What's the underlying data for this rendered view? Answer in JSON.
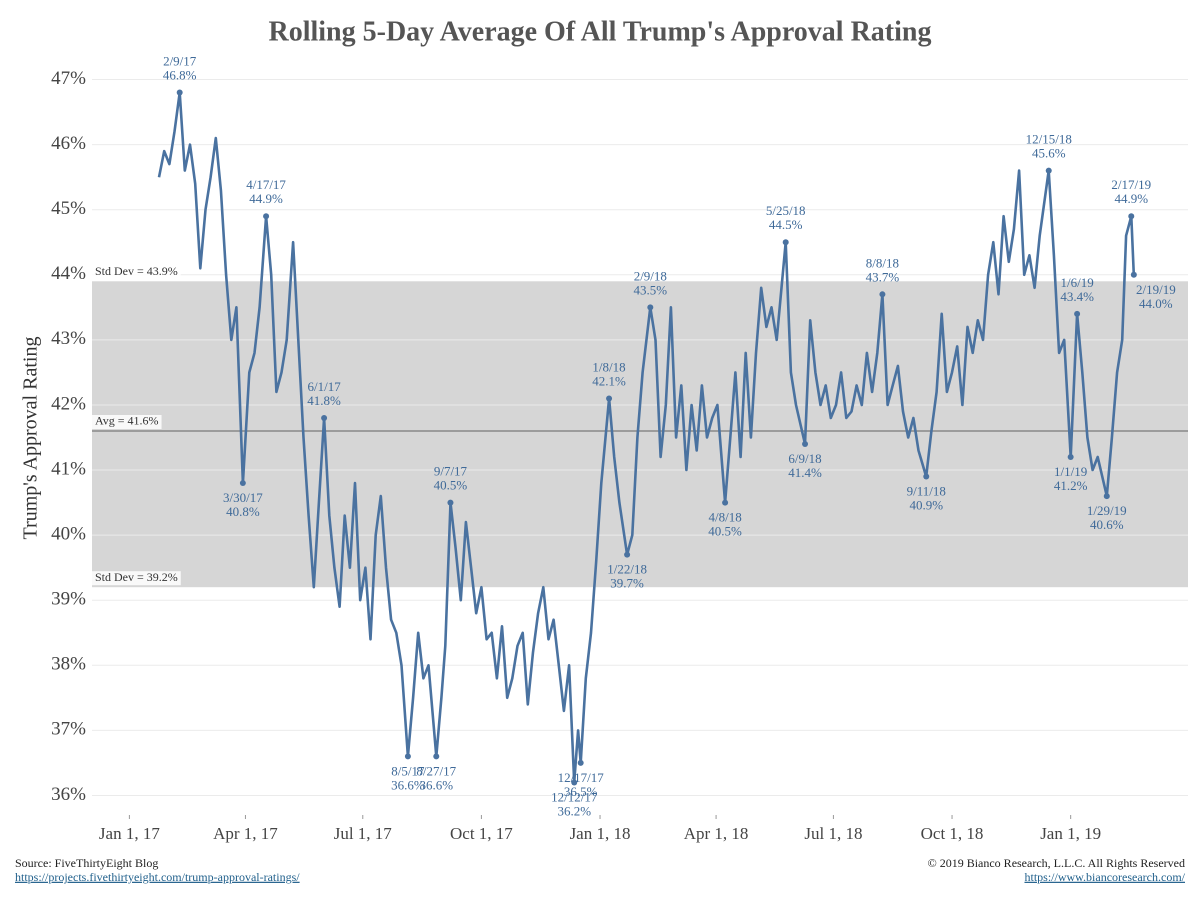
{
  "chart_data": {
    "type": "line",
    "title": "Rolling 5-Day Average Of All Trump's Approval Rating",
    "y_label": "Trump's Approval Rating",
    "source": "Source: FiveThirtyEight Blog",
    "source_url": "https://projects.fivethirtyeight.com/trump-approval-ratings/",
    "copyright": "© 2019 Bianco Research, L.L.C. All Rights Reserved",
    "copyright_url": "https://www.biancoresearch.com/",
    "xlim": [
      "2016-12-03",
      "2019-04-02"
    ],
    "xticks": [
      {
        "value": "2017-01-01",
        "label": "Jan 1, 17"
      },
      {
        "value": "2017-04-01",
        "label": "Apr 1, 17"
      },
      {
        "value": "2017-07-01",
        "label": "Jul 1, 17"
      },
      {
        "value": "2017-10-01",
        "label": "Oct 1, 17"
      },
      {
        "value": "2018-01-01",
        "label": "Jan 1, 18"
      },
      {
        "value": "2018-04-01",
        "label": "Apr 1, 18"
      },
      {
        "value": "2018-07-01",
        "label": "Jul 1, 18"
      },
      {
        "value": "2018-10-01",
        "label": "Oct 1, 18"
      },
      {
        "value": "2019-01-01",
        "label": "Jan 1, 19"
      }
    ],
    "ylim": [
      35.7,
      47.3
    ],
    "yticks": [
      {
        "value": 36,
        "label": "36%"
      },
      {
        "value": 37,
        "label": "37%"
      },
      {
        "value": 38,
        "label": "38%"
      },
      {
        "value": 39,
        "label": "39%"
      },
      {
        "value": 40,
        "label": "40%"
      },
      {
        "value": 41,
        "label": "41%"
      },
      {
        "value": 42,
        "label": "42%"
      },
      {
        "value": 43,
        "label": "43%"
      },
      {
        "value": 44,
        "label": "44%"
      },
      {
        "value": 45,
        "label": "45%"
      },
      {
        "value": 46,
        "label": "46%"
      },
      {
        "value": 47,
        "label": "47%"
      }
    ],
    "grid": true,
    "std_band": [
      {
        "value": 43.9,
        "label": "Std Dev = 43.9%"
      },
      {
        "value": 39.2,
        "label": "Std Dev = 39.2%"
      }
    ],
    "avg_line": {
      "value": 41.6,
      "label": "Avg = 41.6%"
    },
    "band_color": "#d6d6d6",
    "avg_color": "#888888",
    "series": [
      {
        "name": "Rolling 5-Day Average",
        "color": "#4a72a0",
        "x": [
          "2017-01-24",
          "2017-01-28",
          "2017-02-01",
          "2017-02-05",
          "2017-02-09",
          "2017-02-13",
          "2017-02-17",
          "2017-02-21",
          "2017-02-25",
          "2017-03-01",
          "2017-03-05",
          "2017-03-09",
          "2017-03-13",
          "2017-03-17",
          "2017-03-21",
          "2017-03-25",
          "2017-03-30",
          "2017-04-04",
          "2017-04-08",
          "2017-04-12",
          "2017-04-17",
          "2017-04-21",
          "2017-04-25",
          "2017-04-29",
          "2017-05-03",
          "2017-05-08",
          "2017-05-12",
          "2017-05-16",
          "2017-05-20",
          "2017-05-24",
          "2017-05-28",
          "2017-06-01",
          "2017-06-05",
          "2017-06-09",
          "2017-06-13",
          "2017-06-17",
          "2017-06-21",
          "2017-06-25",
          "2017-06-29",
          "2017-07-03",
          "2017-07-07",
          "2017-07-11",
          "2017-07-15",
          "2017-07-19",
          "2017-07-23",
          "2017-07-27",
          "2017-07-31",
          "2017-08-05",
          "2017-08-09",
          "2017-08-13",
          "2017-08-17",
          "2017-08-21",
          "2017-08-27",
          "2017-08-31",
          "2017-09-03",
          "2017-09-07",
          "2017-09-11",
          "2017-09-15",
          "2017-09-19",
          "2017-09-23",
          "2017-09-27",
          "2017-10-01",
          "2017-10-05",
          "2017-10-09",
          "2017-10-13",
          "2017-10-17",
          "2017-10-21",
          "2017-10-25",
          "2017-10-29",
          "2017-11-02",
          "2017-11-06",
          "2017-11-10",
          "2017-11-14",
          "2017-11-18",
          "2017-11-22",
          "2017-11-26",
          "2017-11-30",
          "2017-12-04",
          "2017-12-08",
          "2017-12-12",
          "2017-12-15",
          "2017-12-17",
          "2017-12-21",
          "2017-12-25",
          "2017-12-29",
          "2018-01-02",
          "2018-01-08",
          "2018-01-12",
          "2018-01-16",
          "2018-01-22",
          "2018-01-26",
          "2018-01-30",
          "2018-02-03",
          "2018-02-09",
          "2018-02-13",
          "2018-02-17",
          "2018-02-21",
          "2018-02-25",
          "2018-03-01",
          "2018-03-05",
          "2018-03-09",
          "2018-03-13",
          "2018-03-17",
          "2018-03-21",
          "2018-03-25",
          "2018-03-29",
          "2018-04-02",
          "2018-04-08",
          "2018-04-12",
          "2018-04-16",
          "2018-04-20",
          "2018-04-24",
          "2018-04-28",
          "2018-05-02",
          "2018-05-06",
          "2018-05-10",
          "2018-05-14",
          "2018-05-18",
          "2018-05-25",
          "2018-05-29",
          "2018-06-02",
          "2018-06-09",
          "2018-06-13",
          "2018-06-17",
          "2018-06-21",
          "2018-06-25",
          "2018-06-29",
          "2018-07-03",
          "2018-07-07",
          "2018-07-11",
          "2018-07-15",
          "2018-07-19",
          "2018-07-23",
          "2018-07-27",
          "2018-07-31",
          "2018-08-04",
          "2018-08-08",
          "2018-08-12",
          "2018-08-16",
          "2018-08-20",
          "2018-08-24",
          "2018-08-28",
          "2018-09-01",
          "2018-09-05",
          "2018-09-11",
          "2018-09-15",
          "2018-09-19",
          "2018-09-23",
          "2018-09-27",
          "2018-10-01",
          "2018-10-05",
          "2018-10-09",
          "2018-10-13",
          "2018-10-17",
          "2018-10-21",
          "2018-10-25",
          "2018-10-29",
          "2018-11-02",
          "2018-11-06",
          "2018-11-10",
          "2018-11-14",
          "2018-11-18",
          "2018-11-22",
          "2018-11-26",
          "2018-11-30",
          "2018-12-04",
          "2018-12-08",
          "2018-12-15",
          "2018-12-19",
          "2018-12-23",
          "2018-12-27",
          "2019-01-01",
          "2019-01-06",
          "2019-01-10",
          "2019-01-14",
          "2019-01-18",
          "2019-01-22",
          "2019-01-29",
          "2019-02-02",
          "2019-02-06",
          "2019-02-10",
          "2019-02-13",
          "2019-02-17",
          "2019-02-19"
        ],
        "values": [
          45.5,
          45.9,
          45.7,
          46.2,
          46.8,
          45.6,
          46.0,
          45.4,
          44.1,
          45.0,
          45.5,
          46.1,
          45.3,
          44.0,
          43.0,
          43.5,
          40.8,
          42.5,
          42.8,
          43.5,
          44.9,
          44.0,
          42.2,
          42.5,
          43.0,
          44.5,
          43.0,
          41.5,
          40.3,
          39.2,
          40.5,
          41.8,
          40.3,
          39.5,
          38.9,
          40.3,
          39.5,
          40.8,
          39.0,
          39.5,
          38.4,
          40.0,
          40.6,
          39.5,
          38.7,
          38.5,
          38.0,
          36.6,
          37.5,
          38.5,
          37.8,
          38.0,
          36.6,
          37.5,
          38.3,
          40.5,
          39.8,
          39.0,
          40.2,
          39.5,
          38.8,
          39.2,
          38.4,
          38.5,
          37.8,
          38.6,
          37.5,
          37.8,
          38.3,
          38.5,
          37.4,
          38.2,
          38.8,
          39.2,
          38.4,
          38.7,
          38.0,
          37.3,
          38.0,
          36.2,
          37.0,
          36.5,
          37.8,
          38.5,
          39.6,
          40.8,
          42.1,
          41.2,
          40.5,
          39.7,
          40.0,
          41.5,
          42.5,
          43.5,
          43.0,
          41.2,
          42.0,
          43.5,
          41.5,
          42.3,
          41.0,
          42.0,
          41.3,
          42.3,
          41.5,
          41.8,
          42.0,
          40.5,
          41.5,
          42.5,
          41.2,
          42.8,
          41.5,
          42.8,
          43.8,
          43.2,
          43.5,
          43.0,
          44.5,
          42.5,
          42.0,
          41.4,
          43.3,
          42.5,
          42.0,
          42.3,
          41.8,
          42.0,
          42.5,
          41.8,
          41.9,
          42.3,
          42.0,
          42.8,
          42.2,
          42.8,
          43.7,
          42.0,
          42.3,
          42.6,
          41.9,
          41.5,
          41.8,
          41.3,
          40.9,
          41.6,
          42.2,
          43.4,
          42.2,
          42.5,
          42.9,
          42.0,
          43.2,
          42.8,
          43.3,
          43.0,
          44.0,
          44.5,
          43.7,
          44.9,
          44.2,
          44.7,
          45.6,
          44.0,
          44.3,
          43.8,
          44.6,
          45.6,
          44.3,
          42.8,
          43.0,
          41.2,
          43.4,
          42.5,
          41.5,
          41.0,
          41.2,
          40.6,
          41.5,
          42.5,
          43.0,
          44.6,
          44.9,
          44.0
        ]
      }
    ],
    "annotations": [
      {
        "x": "2017-02-09",
        "date_label": "2/9/17",
        "value": 46.8,
        "value_label": "46.8%"
      },
      {
        "x": "2017-03-30",
        "date_label": "3/30/17",
        "value": 40.8,
        "value_label": "40.8%"
      },
      {
        "x": "2017-04-17",
        "date_label": "4/17/17",
        "value": 44.9,
        "value_label": "44.9%"
      },
      {
        "x": "2017-06-01",
        "date_label": "6/1/17",
        "value": 41.8,
        "value_label": "41.8%"
      },
      {
        "x": "2017-08-05",
        "date_label": "8/5/17",
        "value": 36.6,
        "value_label": "36.6%"
      },
      {
        "x": "2017-08-27",
        "date_label": "8/27/17",
        "value": 36.6,
        "value_label": "36.6%"
      },
      {
        "x": "2017-09-07",
        "date_label": "9/7/17",
        "value": 40.5,
        "value_label": "40.5%"
      },
      {
        "x": "2017-12-12",
        "date_label": "12/12/17",
        "value": 36.2,
        "value_label": "36.2%"
      },
      {
        "x": "2017-12-17",
        "date_label": "12/17/17",
        "value": 36.5,
        "value_label": "36.5%"
      },
      {
        "x": "2018-01-08",
        "date_label": "1/8/18",
        "value": 42.1,
        "value_label": "42.1%"
      },
      {
        "x": "2018-01-22",
        "date_label": "1/22/18",
        "value": 39.7,
        "value_label": "39.7%"
      },
      {
        "x": "2018-02-09",
        "date_label": "2/9/18",
        "value": 43.5,
        "value_label": "43.5%"
      },
      {
        "x": "2018-04-08",
        "date_label": "4/8/18",
        "value": 40.5,
        "value_label": "40.5%"
      },
      {
        "x": "2018-05-25",
        "date_label": "5/25/18",
        "value": 44.5,
        "value_label": "44.5%"
      },
      {
        "x": "2018-06-09",
        "date_label": "6/9/18",
        "value": 41.4,
        "value_label": "41.4%"
      },
      {
        "x": "2018-08-08",
        "date_label": "8/8/18",
        "value": 43.7,
        "value_label": "43.7%"
      },
      {
        "x": "2018-09-11",
        "date_label": "9/11/18",
        "value": 40.9,
        "value_label": "40.9%"
      },
      {
        "x": "2018-12-15",
        "date_label": "12/15/18",
        "value": 45.6,
        "value_label": "45.6%"
      },
      {
        "x": "2019-01-01",
        "date_label": "1/1/19",
        "value": 41.2,
        "value_label": "41.2%"
      },
      {
        "x": "2019-01-06",
        "date_label": "1/6/19",
        "value": 43.4,
        "value_label": "43.4%"
      },
      {
        "x": "2019-01-29",
        "date_label": "1/29/19",
        "value": 40.6,
        "value_label": "40.6%"
      },
      {
        "x": "2019-02-17",
        "date_label": "2/17/19",
        "value": 44.9,
        "value_label": "44.9%"
      },
      {
        "x": "2019-02-19",
        "date_label": "2/19/19",
        "value": 44.0,
        "value_label": "44.0%"
      }
    ]
  }
}
